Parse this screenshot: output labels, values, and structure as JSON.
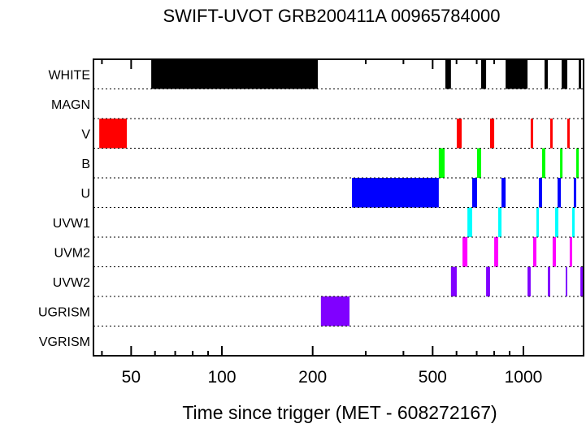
{
  "chart_data": {
    "type": "timeline",
    "title": "SWIFT-UVOT GRB200411A 00965784000",
    "xlabel": "Time since trigger (MET - 608272167)",
    "xscale": "log",
    "xlim": [
      37.5,
      1583
    ],
    "xticks": [
      50,
      100,
      200,
      500,
      1000
    ],
    "xtick_labels": [
      "50",
      "100",
      "200",
      "500",
      "1000"
    ],
    "minor_ticks": [
      40,
      60,
      70,
      80,
      90,
      300,
      400,
      600,
      700,
      800,
      900
    ],
    "grid": "dotted row separators",
    "rows": [
      {
        "name": "WHITE",
        "color": "#000000",
        "intervals": [
          [
            58.3,
            208
          ],
          [
            551,
            575
          ],
          [
            724,
            752
          ],
          [
            873,
            1032
          ],
          [
            1175,
            1205
          ],
          [
            1339,
            1398
          ],
          [
            1526,
            1554
          ]
        ]
      },
      {
        "name": "MAGN",
        "color": "#000000",
        "intervals": []
      },
      {
        "name": "V",
        "color": "#ff0000",
        "intervals": [
          [
            39.2,
            48.4
          ],
          [
            601,
            624
          ],
          [
            775,
            800
          ],
          [
            1057,
            1077
          ],
          [
            1227,
            1250
          ],
          [
            1398,
            1424
          ],
          [
            1573,
            1583
          ]
        ]
      },
      {
        "name": "B",
        "color": "#00ff00",
        "intervals": [
          [
            524,
            548
          ],
          [
            702,
            724
          ],
          [
            1153,
            1182
          ],
          [
            1323,
            1348
          ],
          [
            1497,
            1526
          ]
        ]
      },
      {
        "name": "U",
        "color": "#0000ff",
        "intervals": [
          [
            270,
            524
          ],
          [
            676,
            702
          ],
          [
            846,
            873
          ],
          [
            1125,
            1153
          ],
          [
            1298,
            1331
          ],
          [
            1469,
            1497
          ]
        ]
      },
      {
        "name": "UVW1",
        "color": "#00ffff",
        "intervals": [
          [
            652,
            676
          ],
          [
            825,
            846
          ],
          [
            1104,
            1125
          ],
          [
            1274,
            1306
          ],
          [
            1451,
            1479
          ]
        ]
      },
      {
        "name": "UVM2",
        "color": "#ff00ff",
        "intervals": [
          [
            628,
            652
          ],
          [
            800,
            825
          ],
          [
            1077,
            1104
          ],
          [
            1250,
            1282
          ],
          [
            1424,
            1451
          ]
        ]
      },
      {
        "name": "UVW2",
        "color": "#8000ff",
        "intervals": [
          [
            575,
            601
          ],
          [
            752,
            775
          ],
          [
            1032,
            1057
          ],
          [
            1205,
            1227
          ],
          [
            1381,
            1398
          ],
          [
            1545,
            1573
          ]
        ]
      },
      {
        "name": "UGRISM",
        "color": "#8000ff",
        "intervals": [
          [
            213,
            265
          ]
        ]
      },
      {
        "name": "VGRISM",
        "color": "#000000",
        "intervals": []
      }
    ]
  }
}
